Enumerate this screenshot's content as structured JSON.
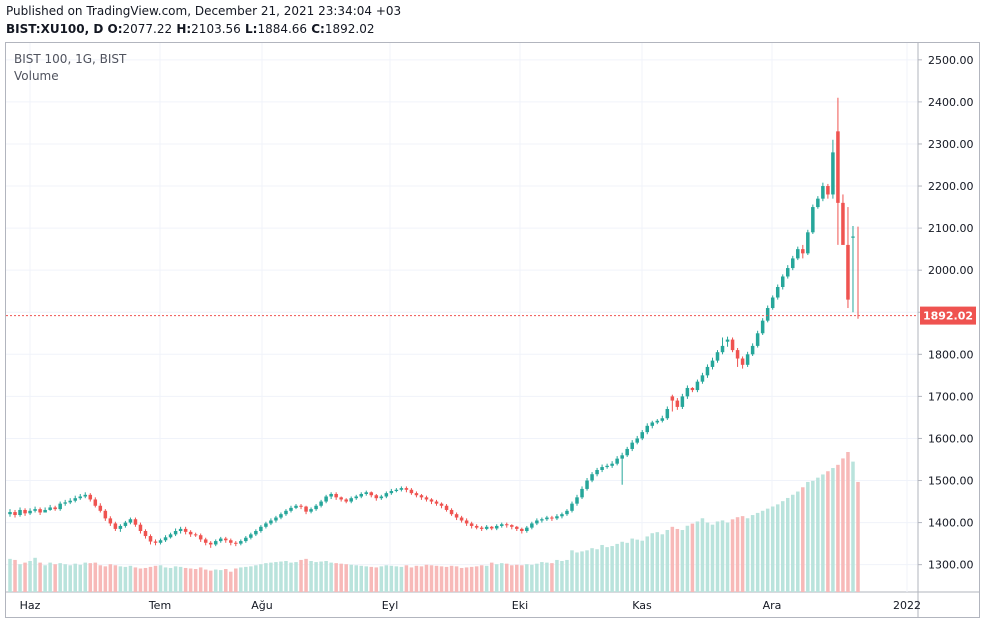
{
  "header": {
    "line1": "Published on TradingView.com, December 21, 2021 23:34:04 +03",
    "symbol": "BIST:XU100, D",
    "o_label": "O:",
    "o_value": "2077.22",
    "h_label": "H:",
    "h_value": "2103.56",
    "l_label": "L:",
    "l_value": "1884.66",
    "c_label": "C:",
    "c_value": "1892.02"
  },
  "legend": {
    "title": "BIST 100, 1G, BIST",
    "volume": "Volume"
  },
  "chart_data": {
    "type": "candlestick",
    "ylim": [
      1235,
      2540
    ],
    "y_ticks": [
      "2500.00",
      "2400.00",
      "2300.00",
      "2200.00",
      "2100.00",
      "2000.00",
      "1900.00",
      "1800.00",
      "1700.00",
      "1600.00",
      "1500.00",
      "1400.00",
      "1300.00"
    ],
    "x_tick_labels": [
      "Haz",
      "Tem",
      "Ağu",
      "Eyl",
      "Eki",
      "Kas",
      "Ara",
      "2022"
    ],
    "last_price": 1892.02,
    "last_price_label": "1892.02",
    "colors": {
      "up": "#26a69a",
      "down": "#ef5350",
      "up_vol": "#b9e3dc",
      "down_vol": "#f7b9b8",
      "grid": "#f0f3fa",
      "axis_text": "#131722"
    },
    "closes": [
      1425,
      1418,
      1430,
      1422,
      1428,
      1432,
      1424,
      1430,
      1436,
      1432,
      1445,
      1448,
      1452,
      1458,
      1462,
      1466,
      1455,
      1440,
      1428,
      1410,
      1398,
      1385,
      1392,
      1400,
      1408,
      1395,
      1380,
      1368,
      1355,
      1352,
      1358,
      1365,
      1372,
      1380,
      1385,
      1378,
      1372,
      1370,
      1360,
      1352,
      1348,
      1356,
      1362,
      1358,
      1352,
      1350,
      1356,
      1364,
      1372,
      1380,
      1390,
      1398,
      1405,
      1412,
      1420,
      1428,
      1435,
      1440,
      1438,
      1426,
      1432,
      1440,
      1450,
      1462,
      1468,
      1460,
      1455,
      1450,
      1458,
      1462,
      1468,
      1472,
      1465,
      1458,
      1462,
      1470,
      1475,
      1478,
      1482,
      1478,
      1470,
      1465,
      1460,
      1455,
      1450,
      1445,
      1440,
      1430,
      1420,
      1412,
      1405,
      1398,
      1392,
      1388,
      1385,
      1390,
      1386,
      1392,
      1396,
      1394,
      1390,
      1385,
      1380,
      1388,
      1398,
      1405,
      1408,
      1412,
      1410,
      1415,
      1420,
      1428,
      1445,
      1460,
      1480,
      1500,
      1515,
      1525,
      1532,
      1535,
      1540,
      1552,
      1560,
      1575,
      1590,
      1600,
      1615,
      1630,
      1638,
      1642,
      1648,
      1670,
      1690,
      1675,
      1700,
      1720,
      1715,
      1735,
      1750,
      1770,
      1785,
      1805,
      1820,
      1835,
      1810,
      1790,
      1775,
      1800,
      1820,
      1850,
      1880,
      1910,
      1935,
      1960,
      1985,
      2005,
      2028,
      2050,
      2040,
      2090,
      2150,
      2170,
      2200,
      2180,
      2280,
      2160,
      2060,
      1930,
      2080,
      1892
    ],
    "opens": [
      1420,
      1425,
      1418,
      1430,
      1422,
      1428,
      1432,
      1424,
      1430,
      1436,
      1432,
      1445,
      1448,
      1452,
      1458,
      1462,
      1466,
      1455,
      1440,
      1428,
      1410,
      1398,
      1385,
      1392,
      1400,
      1408,
      1395,
      1380,
      1368,
      1355,
      1352,
      1358,
      1365,
      1372,
      1380,
      1385,
      1378,
      1372,
      1370,
      1360,
      1352,
      1348,
      1356,
      1362,
      1358,
      1352,
      1350,
      1356,
      1364,
      1372,
      1380,
      1390,
      1398,
      1405,
      1412,
      1420,
      1428,
      1435,
      1440,
      1438,
      1426,
      1432,
      1440,
      1450,
      1462,
      1468,
      1460,
      1455,
      1450,
      1458,
      1462,
      1468,
      1472,
      1465,
      1458,
      1462,
      1470,
      1475,
      1478,
      1482,
      1478,
      1470,
      1465,
      1460,
      1455,
      1450,
      1445,
      1440,
      1430,
      1420,
      1412,
      1405,
      1398,
      1392,
      1388,
      1385,
      1390,
      1386,
      1392,
      1396,
      1394,
      1390,
      1385,
      1380,
      1388,
      1398,
      1405,
      1408,
      1412,
      1410,
      1415,
      1420,
      1428,
      1445,
      1460,
      1480,
      1500,
      1515,
      1525,
      1532,
      1535,
      1540,
      1552,
      1560,
      1575,
      1590,
      1600,
      1615,
      1630,
      1638,
      1642,
      1648,
      1700,
      1690,
      1675,
      1700,
      1720,
      1715,
      1735,
      1750,
      1770,
      1785,
      1805,
      1830,
      1835,
      1810,
      1790,
      1775,
      1800,
      1820,
      1850,
      1880,
      1910,
      1935,
      1960,
      1985,
      2005,
      2028,
      2050,
      2040,
      2090,
      2150,
      2170,
      2200,
      2180,
      2330,
      2160,
      2060,
      2077.22
    ],
    "highs": [
      1432,
      1430,
      1436,
      1434,
      1434,
      1438,
      1436,
      1436,
      1442,
      1440,
      1450,
      1454,
      1458,
      1464,
      1468,
      1472,
      1470,
      1460,
      1446,
      1432,
      1415,
      1402,
      1396,
      1404,
      1412,
      1412,
      1400,
      1384,
      1372,
      1360,
      1362,
      1370,
      1376,
      1386,
      1390,
      1390,
      1382,
      1376,
      1374,
      1364,
      1356,
      1360,
      1366,
      1366,
      1362,
      1356,
      1360,
      1368,
      1376,
      1384,
      1394,
      1402,
      1410,
      1416,
      1424,
      1432,
      1440,
      1444,
      1444,
      1440,
      1436,
      1444,
      1454,
      1466,
      1472,
      1472,
      1462,
      1458,
      1462,
      1466,
      1472,
      1476,
      1474,
      1468,
      1466,
      1474,
      1480,
      1482,
      1486,
      1486,
      1482,
      1474,
      1468,
      1464,
      1458,
      1454,
      1448,
      1444,
      1434,
      1424,
      1416,
      1410,
      1402,
      1396,
      1392,
      1394,
      1392,
      1396,
      1400,
      1400,
      1396,
      1392,
      1388,
      1392,
      1402,
      1410,
      1412,
      1416,
      1416,
      1420,
      1424,
      1432,
      1450,
      1466,
      1486,
      1506,
      1520,
      1530,
      1538,
      1540,
      1546,
      1558,
      1566,
      1580,
      1596,
      1606,
      1620,
      1636,
      1642,
      1646,
      1654,
      1676,
      1704,
      1696,
      1706,
      1726,
      1722,
      1740,
      1756,
      1776,
      1792,
      1810,
      1840,
      1842,
      1840,
      1815,
      1795,
      1806,
      1826,
      1856,
      1886,
      1916,
      1940,
      1966,
      1990,
      2012,
      2034,
      2056,
      2060,
      2096,
      2156,
      2176,
      2208,
      2205,
      2310,
      2410,
      2180,
      2150,
      2105,
      2103.56
    ],
    "lows": [
      1414,
      1412,
      1414,
      1416,
      1418,
      1424,
      1418,
      1424,
      1428,
      1428,
      1428,
      1440,
      1444,
      1448,
      1454,
      1458,
      1450,
      1436,
      1424,
      1404,
      1392,
      1380,
      1378,
      1388,
      1396,
      1390,
      1374,
      1362,
      1348,
      1346,
      1348,
      1354,
      1362,
      1368,
      1374,
      1372,
      1366,
      1366,
      1354,
      1346,
      1340,
      1344,
      1352,
      1352,
      1346,
      1344,
      1346,
      1352,
      1360,
      1368,
      1376,
      1386,
      1394,
      1400,
      1408,
      1416,
      1424,
      1432,
      1432,
      1420,
      1422,
      1428,
      1436,
      1446,
      1456,
      1454,
      1450,
      1446,
      1446,
      1454,
      1458,
      1464,
      1460,
      1452,
      1454,
      1458,
      1466,
      1472,
      1474,
      1472,
      1466,
      1460,
      1454,
      1450,
      1444,
      1440,
      1434,
      1426,
      1416,
      1406,
      1400,
      1392,
      1386,
      1384,
      1380,
      1382,
      1382,
      1382,
      1388,
      1388,
      1384,
      1380,
      1374,
      1376,
      1384,
      1394,
      1400,
      1404,
      1404,
      1406,
      1410,
      1416,
      1424,
      1440,
      1456,
      1476,
      1496,
      1510,
      1520,
      1528,
      1530,
      1536,
      1490,
      1556,
      1570,
      1586,
      1596,
      1610,
      1624,
      1634,
      1638,
      1644,
      1664,
      1668,
      1670,
      1694,
      1710,
      1710,
      1730,
      1744,
      1764,
      1780,
      1800,
      1818,
      1805,
      1770,
      1766,
      1770,
      1796,
      1816,
      1846,
      1876,
      1906,
      1930,
      1954,
      1980,
      2000,
      2024,
      2028,
      2036,
      2086,
      2146,
      2164,
      2170,
      2170,
      2060,
      2070,
      1910,
      1900,
      1884.66
    ],
    "volumes": [
      62,
      60,
      52,
      55,
      58,
      64,
      55,
      50,
      55,
      52,
      54,
      52,
      50,
      53,
      51,
      55,
      54,
      55,
      50,
      48,
      52,
      50,
      48,
      47,
      49,
      46,
      44,
      45,
      47,
      49,
      50,
      46,
      45,
      48,
      47,
      45,
      44,
      43,
      46,
      42,
      40,
      42,
      41,
      43,
      38,
      44,
      46,
      47,
      48,
      50,
      52,
      54,
      55,
      56,
      57,
      58,
      55,
      56,
      60,
      62,
      58,
      56,
      57,
      58,
      55,
      54,
      53,
      52,
      51,
      50,
      49,
      48,
      47,
      46,
      48,
      50,
      49,
      48,
      47,
      50,
      46,
      49,
      48,
      51,
      50,
      49,
      48,
      47,
      49,
      48,
      45,
      46,
      47,
      48,
      50,
      49,
      55,
      52,
      54,
      53,
      50,
      51,
      50,
      52,
      51,
      53,
      56,
      55,
      54,
      60,
      58,
      60,
      78,
      74,
      76,
      78,
      82,
      80,
      88,
      84,
      86,
      90,
      94,
      92,
      100,
      98,
      96,
      104,
      110,
      112,
      108,
      116,
      122,
      118,
      116,
      124,
      128,
      132,
      138,
      130,
      126,
      132,
      134,
      130,
      136,
      140,
      142,
      138,
      144,
      148,
      152,
      156,
      160,
      164,
      170,
      176,
      182,
      188,
      196,
      206,
      208,
      214,
      220,
      226,
      232,
      238,
      250,
      262,
      244,
      206
    ],
    "volume_scale_max": 262
  }
}
